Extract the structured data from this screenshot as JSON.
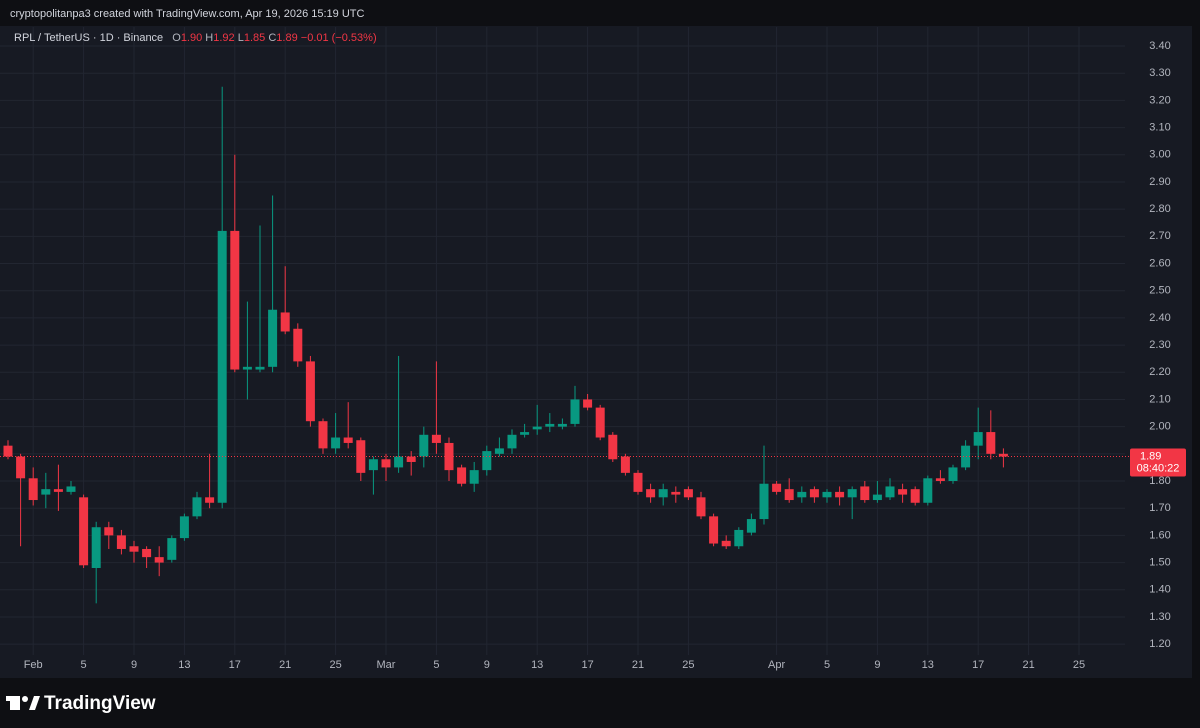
{
  "attribution": "cryptopolitanpa3 created with TradingView.com, Apr 19, 2026 15:19 UTC",
  "footer": {
    "brand": "TradingView"
  },
  "chart_data": {
    "type": "candlestick",
    "title": "RPL / TetherUS · 1D · Binance",
    "ohlc_readout": {
      "o_key": "O",
      "o": "1.90",
      "h_key": "H",
      "h": "1.92",
      "l_key": "L",
      "l": "1.85",
      "c_key": "C",
      "c": "1.89",
      "change": "−0.01 (−0.53%)"
    },
    "last_price_label": "1.89",
    "countdown": "08:40:22",
    "up_color": "#089981",
    "down_color": "#f23645",
    "grid": true,
    "ylim": [
      1.16,
      3.47
    ],
    "yticks": [
      {
        "value": 1.2,
        "label": "1.20"
      },
      {
        "value": 1.3,
        "label": "1.30"
      },
      {
        "value": 1.4,
        "label": "1.40"
      },
      {
        "value": 1.5,
        "label": "1.50"
      },
      {
        "value": 1.6,
        "label": "1.60"
      },
      {
        "value": 1.7,
        "label": "1.70"
      },
      {
        "value": 1.8,
        "label": "1.80"
      },
      {
        "value": 1.9,
        "label": "1.90"
      },
      {
        "value": 2.0,
        "label": "2.00"
      },
      {
        "value": 2.1,
        "label": "2.10"
      },
      {
        "value": 2.2,
        "label": "2.20"
      },
      {
        "value": 2.3,
        "label": "2.30"
      },
      {
        "value": 2.4,
        "label": "2.40"
      },
      {
        "value": 2.5,
        "label": "2.50"
      },
      {
        "value": 2.6,
        "label": "2.60"
      },
      {
        "value": 2.7,
        "label": "2.70"
      },
      {
        "value": 2.8,
        "label": "2.80"
      },
      {
        "value": 2.9,
        "label": "2.90"
      },
      {
        "value": 3.0,
        "label": "3.00"
      },
      {
        "value": 3.1,
        "label": "3.10"
      },
      {
        "value": 3.2,
        "label": "3.20"
      },
      {
        "value": 3.3,
        "label": "3.30"
      },
      {
        "value": 3.4,
        "label": "3.40"
      }
    ],
    "categories": [
      null,
      null,
      "Feb",
      null,
      null,
      null,
      "5",
      null,
      null,
      null,
      "9",
      null,
      null,
      null,
      "13",
      null,
      null,
      null,
      "17",
      null,
      null,
      null,
      "21",
      null,
      null,
      null,
      "25",
      null,
      null,
      null,
      "Mar",
      null,
      null,
      null,
      "5",
      null,
      null,
      null,
      "9",
      null,
      null,
      null,
      "13",
      null,
      null,
      null,
      "17",
      null,
      null,
      null,
      "21",
      null,
      null,
      null,
      "25",
      null,
      null,
      null,
      null,
      null,
      null,
      "Apr",
      null,
      null,
      null,
      "5",
      null,
      null,
      null,
      "9",
      null,
      null,
      null,
      "13",
      null,
      null,
      null,
      "17",
      null,
      null,
      null,
      "21",
      null,
      null,
      null,
      "25",
      null,
      null,
      null,
      null
    ],
    "open": [
      1.93,
      1.89,
      1.81,
      1.75,
      1.77,
      1.76,
      1.74,
      1.48,
      1.63,
      1.6,
      1.56,
      1.55,
      1.52,
      1.51,
      1.59,
      1.67,
      1.74,
      1.72,
      2.72,
      2.21,
      2.21,
      2.22,
      2.42,
      2.36,
      2.24,
      2.02,
      1.92,
      1.96,
      1.95,
      1.84,
      1.88,
      1.85,
      1.89,
      1.89,
      1.97,
      1.94,
      1.85,
      1.79,
      1.84,
      1.9,
      1.92,
      1.97,
      1.99,
      2.0,
      2.0,
      2.01,
      2.1,
      2.07,
      1.97,
      1.89,
      1.83,
      1.77,
      1.74,
      1.76,
      1.77,
      1.74,
      1.67,
      1.58,
      1.56,
      1.61,
      1.66,
      1.79,
      1.77,
      1.74,
      1.77,
      1.74,
      1.76,
      1.74,
      1.78,
      1.73,
      1.74,
      1.77,
      1.77,
      1.72,
      1.81,
      1.8,
      1.85,
      1.93,
      1.98,
      1.9,
      null,
      null,
      null,
      null,
      null,
      null,
      null,
      null,
      null,
      null
    ],
    "high": [
      1.95,
      1.9,
      1.85,
      1.83,
      1.86,
      1.8,
      1.75,
      1.65,
      1.65,
      1.62,
      1.58,
      1.56,
      1.56,
      1.6,
      1.68,
      1.76,
      1.9,
      3.25,
      3.0,
      2.46,
      2.74,
      2.85,
      2.59,
      2.38,
      2.26,
      2.03,
      2.05,
      2.09,
      1.96,
      1.89,
      1.9,
      2.26,
      1.91,
      2.0,
      2.24,
      1.96,
      1.86,
      1.87,
      1.93,
      1.96,
      1.99,
      2.01,
      2.08,
      2.05,
      2.03,
      2.15,
      2.12,
      2.08,
      1.98,
      1.9,
      1.84,
      1.79,
      1.79,
      1.78,
      1.78,
      1.76,
      1.68,
      1.6,
      1.63,
      1.68,
      1.93,
      1.8,
      1.81,
      1.78,
      1.78,
      1.77,
      1.78,
      1.78,
      1.8,
      1.8,
      1.81,
      1.79,
      1.78,
      1.82,
      1.84,
      1.86,
      1.95,
      2.07,
      2.06,
      1.92,
      null,
      null,
      null,
      null,
      null,
      null,
      null,
      null,
      null,
      null
    ],
    "low": [
      1.88,
      1.56,
      1.71,
      1.7,
      1.69,
      1.75,
      1.48,
      1.35,
      1.55,
      1.53,
      1.5,
      1.48,
      1.45,
      1.5,
      1.58,
      1.66,
      1.7,
      1.7,
      2.2,
      2.1,
      2.2,
      2.2,
      2.34,
      2.22,
      2.0,
      1.9,
      1.9,
      1.92,
      1.8,
      1.75,
      1.8,
      1.83,
      1.82,
      1.85,
      1.9,
      1.8,
      1.78,
      1.76,
      1.82,
      1.89,
      1.9,
      1.96,
      1.97,
      1.98,
      1.99,
      2.0,
      2.06,
      1.95,
      1.87,
      1.82,
      1.75,
      1.72,
      1.71,
      1.72,
      1.73,
      1.66,
      1.56,
      1.55,
      1.55,
      1.6,
      1.64,
      1.75,
      1.72,
      1.72,
      1.72,
      1.72,
      1.71,
      1.66,
      1.72,
      1.72,
      1.73,
      1.72,
      1.71,
      1.71,
      1.79,
      1.79,
      1.84,
      1.88,
      1.88,
      1.85,
      null,
      null,
      null,
      null,
      null,
      null,
      null,
      null,
      null,
      null
    ],
    "close": [
      1.89,
      1.81,
      1.73,
      1.77,
      1.76,
      1.78,
      1.49,
      1.63,
      1.6,
      1.55,
      1.54,
      1.52,
      1.5,
      1.59,
      1.67,
      1.74,
      1.72,
      2.72,
      2.21,
      2.22,
      2.22,
      2.43,
      2.35,
      2.24,
      2.02,
      1.92,
      1.96,
      1.94,
      1.83,
      1.88,
      1.85,
      1.89,
      1.87,
      1.97,
      1.94,
      1.84,
      1.79,
      1.84,
      1.91,
      1.92,
      1.97,
      1.98,
      2.0,
      2.01,
      2.01,
      2.1,
      2.07,
      1.96,
      1.88,
      1.83,
      1.76,
      1.74,
      1.77,
      1.75,
      1.74,
      1.67,
      1.57,
      1.56,
      1.62,
      1.66,
      1.79,
      1.76,
      1.73,
      1.76,
      1.74,
      1.76,
      1.74,
      1.77,
      1.73,
      1.75,
      1.78,
      1.75,
      1.72,
      1.81,
      1.8,
      1.85,
      1.93,
      1.98,
      1.9,
      1.89,
      null,
      null,
      null,
      null,
      null,
      null,
      null,
      null,
      null,
      null
    ]
  }
}
